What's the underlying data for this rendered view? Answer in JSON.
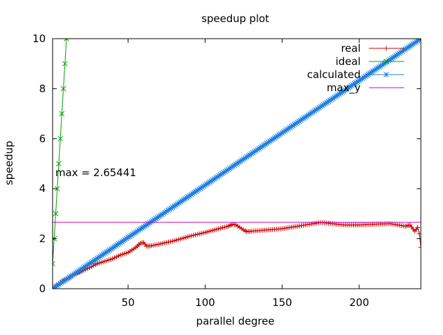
{
  "chart_data": {
    "type": "line",
    "title": "speedup plot",
    "xlabel": "parallel degree",
    "ylabel": "speedup",
    "xlim": [
      1,
      240
    ],
    "ylim": [
      0,
      10
    ],
    "x_ticks": [
      50,
      100,
      150,
      200
    ],
    "y_ticks": [
      0,
      2,
      4,
      6,
      8,
      10
    ],
    "grid": false,
    "legend_position": "top-right",
    "annotation": "max = 2.65441",
    "series": [
      {
        "name": "real",
        "color": "#cc0000",
        "marker": "plus",
        "style": "linespoints",
        "points": [
          [
            1,
            0.0
          ],
          [
            5,
            0.2
          ],
          [
            10,
            0.4
          ],
          [
            15,
            0.55
          ],
          [
            20,
            0.7
          ],
          [
            25,
            0.85
          ],
          [
            30,
            1.0
          ],
          [
            35,
            1.1
          ],
          [
            40,
            1.2
          ],
          [
            45,
            1.35
          ],
          [
            50,
            1.45
          ],
          [
            55,
            1.65
          ],
          [
            58,
            1.82
          ],
          [
            60,
            1.85
          ],
          [
            62,
            1.7
          ],
          [
            65,
            1.72
          ],
          [
            70,
            1.78
          ],
          [
            80,
            1.92
          ],
          [
            90,
            2.1
          ],
          [
            100,
            2.25
          ],
          [
            110,
            2.42
          ],
          [
            115,
            2.5
          ],
          [
            118,
            2.58
          ],
          [
            120,
            2.55
          ],
          [
            125,
            2.35
          ],
          [
            127,
            2.28
          ],
          [
            130,
            2.3
          ],
          [
            140,
            2.35
          ],
          [
            150,
            2.4
          ],
          [
            160,
            2.5
          ],
          [
            170,
            2.6
          ],
          [
            175,
            2.65
          ],
          [
            180,
            2.62
          ],
          [
            190,
            2.55
          ],
          [
            200,
            2.55
          ],
          [
            210,
            2.58
          ],
          [
            220,
            2.6
          ],
          [
            225,
            2.55
          ],
          [
            230,
            2.5
          ],
          [
            233,
            2.55
          ],
          [
            236,
            2.3
          ],
          [
            238,
            2.45
          ],
          [
            239,
            2.2
          ],
          [
            240,
            1.65
          ]
        ]
      },
      {
        "name": "ideal",
        "color": "#00a000",
        "marker": "x",
        "style": "linespoints",
        "points": [
          [
            1,
            1
          ],
          [
            2,
            2
          ],
          [
            3,
            3
          ],
          [
            4,
            4
          ],
          [
            5,
            5
          ],
          [
            6,
            6
          ],
          [
            7,
            7
          ],
          [
            8,
            8
          ],
          [
            9,
            9
          ],
          [
            10,
            10
          ]
        ]
      },
      {
        "name": "calculated",
        "color": "#1e7fe0",
        "marker": "star",
        "style": "linespoints",
        "points": [
          [
            1,
            0.0
          ],
          [
            240,
            10.0
          ]
        ],
        "point_count": 240
      },
      {
        "name": "max_y",
        "color": "#c000c0",
        "marker": "none",
        "style": "line",
        "y_constant": 2.65441
      }
    ]
  }
}
